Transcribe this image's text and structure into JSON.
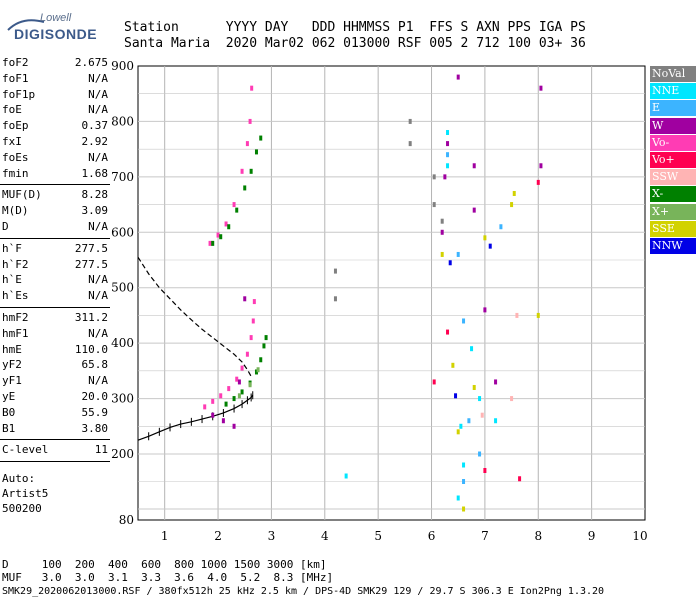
{
  "logo": {
    "top": "Lowell",
    "main": "DIGISONDE"
  },
  "header": {
    "line1": "Station      YYYY DAY   DDD HHMMSS P1  FFS S AXN PPS IGA PS",
    "line2": "Santa Maria  2020 Mar02 062 013000 RSF 005 2 712 100 03+ 36"
  },
  "params": {
    "group1": [
      {
        "name": "foF2",
        "value": "2.675"
      },
      {
        "name": "foF1",
        "value": "N/A"
      },
      {
        "name": "foF1p",
        "value": "N/A"
      },
      {
        "name": "foE",
        "value": "N/A"
      },
      {
        "name": "foEp",
        "value": "0.37"
      },
      {
        "name": "fxI",
        "value": "2.92"
      },
      {
        "name": "foEs",
        "value": "N/A"
      },
      {
        "name": "fmin",
        "value": "1.68"
      }
    ],
    "group2": [
      {
        "name": "MUF(D)",
        "value": "8.28"
      },
      {
        "name": "M(D)",
        "value": "3.09"
      },
      {
        "name": "D",
        "value": "N/A"
      }
    ],
    "group3": [
      {
        "name": "h`F",
        "value": "277.5"
      },
      {
        "name": "h`F2",
        "value": "277.5"
      },
      {
        "name": "h`E",
        "value": "N/A"
      },
      {
        "name": "h`Es",
        "value": "N/A"
      }
    ],
    "group4": [
      {
        "name": "hmF2",
        "value": "311.2"
      },
      {
        "name": "hmF1",
        "value": "N/A"
      },
      {
        "name": "hmE",
        "value": "110.0"
      },
      {
        "name": "yF2",
        "value": "65.8"
      },
      {
        "name": "yF1",
        "value": "N/A"
      },
      {
        "name": "yE",
        "value": "20.0"
      },
      {
        "name": "B0",
        "value": "55.9"
      },
      {
        "name": "B1",
        "value": "3.80"
      }
    ],
    "group5": [
      {
        "name": "C-level",
        "value": "11"
      }
    ],
    "auto": [
      "Auto:",
      "Artist5",
      "500200"
    ]
  },
  "legend": [
    {
      "label": "NoVal",
      "color": "#808080"
    },
    {
      "label": "NNE",
      "color": "#00e6ff"
    },
    {
      "label": "E",
      "color": "#3cb4ff"
    },
    {
      "label": "W",
      "color": "#a000a0"
    },
    {
      "label": "Vo-",
      "color": "#ff3cb4"
    },
    {
      "label": "Vo+",
      "color": "#ff0050"
    },
    {
      "label": "SSW",
      "color": "#ffb4b4"
    },
    {
      "label": "X-",
      "color": "#008000"
    },
    {
      "label": "X+",
      "color": "#78b45a"
    },
    {
      "label": "SSE",
      "color": "#d2d200"
    },
    {
      "label": "NNW",
      "color": "#0000e6"
    }
  ],
  "footer": {
    "line1": "D     100  200  400  600  800 1000 1500 3000 [km]",
    "line2": "MUF   3.0  3.0  3.1  3.3  3.6  4.0  5.2  8.3 [MHz]",
    "line3": "SMK29_2020062013000.RSF / 380fx512h 25 kHz 2.5 km / DPS-4D SMK29 129 / 29.7 S 306.3 E Ion2Png 1.3.20"
  },
  "chart_data": {
    "type": "scatter",
    "title": "",
    "xlabel": "",
    "ylabel": "",
    "xlim": [
      0.5,
      10
    ],
    "ylim": [
      80,
      900
    ],
    "x_ticks": [
      1,
      2,
      3,
      4,
      5,
      6,
      7,
      8,
      9,
      10
    ],
    "y_ticks": [
      80,
      200,
      300,
      400,
      500,
      600,
      700,
      800,
      900
    ],
    "grid": true,
    "series": [
      {
        "name": "Vo-",
        "color": "#ff3cb4",
        "points": [
          [
            1.75,
            285
          ],
          [
            1.9,
            295
          ],
          [
            2.05,
            305
          ],
          [
            2.2,
            318
          ],
          [
            2.35,
            335
          ],
          [
            2.45,
            355
          ],
          [
            2.55,
            380
          ],
          [
            2.62,
            410
          ],
          [
            2.66,
            440
          ],
          [
            2.68,
            475
          ],
          [
            1.85,
            580
          ],
          [
            2.0,
            595
          ],
          [
            2.15,
            615
          ],
          [
            2.3,
            650
          ],
          [
            2.45,
            710
          ],
          [
            2.55,
            760
          ],
          [
            2.6,
            800
          ],
          [
            2.63,
            860
          ]
        ]
      },
      {
        "name": "X-",
        "color": "#008000",
        "points": [
          [
            2.15,
            290
          ],
          [
            2.3,
            300
          ],
          [
            2.45,
            312
          ],
          [
            2.6,
            328
          ],
          [
            2.72,
            348
          ],
          [
            2.8,
            370
          ],
          [
            2.86,
            395
          ],
          [
            2.9,
            410
          ],
          [
            1.9,
            580
          ],
          [
            2.05,
            592
          ],
          [
            2.2,
            610
          ],
          [
            2.35,
            640
          ],
          [
            2.5,
            680
          ],
          [
            2.62,
            710
          ],
          [
            2.72,
            745
          ],
          [
            2.8,
            770
          ]
        ]
      },
      {
        "name": "X+",
        "color": "#78b45a",
        "points": [
          [
            2.4,
            305
          ],
          [
            2.6,
            325
          ],
          [
            2.75,
            352
          ]
        ]
      },
      {
        "name": "W",
        "color": "#a000a0",
        "points": [
          [
            1.9,
            270
          ],
          [
            2.1,
            260
          ],
          [
            2.3,
            250
          ],
          [
            2.5,
            480
          ],
          [
            2.4,
            330
          ],
          [
            6.2,
            600
          ],
          [
            6.25,
            700
          ],
          [
            6.3,
            760
          ],
          [
            6.5,
            880
          ],
          [
            6.8,
            720
          ],
          [
            6.8,
            640
          ],
          [
            7.0,
            460
          ],
          [
            7.2,
            330
          ],
          [
            8.05,
            720
          ],
          [
            8.05,
            860
          ]
        ]
      },
      {
        "name": "NoVal",
        "color": "#808080",
        "points": [
          [
            5.6,
            760
          ],
          [
            5.6,
            800
          ],
          [
            4.2,
            480
          ],
          [
            4.2,
            530
          ],
          [
            6.05,
            650
          ],
          [
            6.05,
            700
          ],
          [
            6.2,
            620
          ]
        ]
      },
      {
        "name": "NNE",
        "color": "#00e6ff",
        "points": [
          [
            6.3,
            780
          ],
          [
            6.3,
            720
          ],
          [
            6.55,
            250
          ],
          [
            6.6,
            180
          ],
          [
            6.5,
            120
          ],
          [
            6.75,
            390
          ],
          [
            6.9,
            300
          ],
          [
            7.2,
            260
          ],
          [
            4.4,
            160
          ]
        ]
      },
      {
        "name": "E",
        "color": "#3cb4ff",
        "points": [
          [
            6.3,
            740
          ],
          [
            6.5,
            560
          ],
          [
            6.6,
            440
          ],
          [
            6.7,
            260
          ],
          [
            6.9,
            200
          ],
          [
            7.3,
            610
          ],
          [
            6.6,
            150
          ]
        ]
      },
      {
        "name": "SSE",
        "color": "#d2d200",
        "points": [
          [
            6.2,
            560
          ],
          [
            6.4,
            360
          ],
          [
            6.5,
            240
          ],
          [
            6.6,
            100
          ],
          [
            7.5,
            650
          ],
          [
            7.55,
            670
          ],
          [
            8.0,
            450
          ],
          [
            6.8,
            320
          ],
          [
            7.0,
            590
          ]
        ]
      },
      {
        "name": "Vo+",
        "color": "#ff0050",
        "points": [
          [
            6.05,
            330
          ],
          [
            7.65,
            155
          ],
          [
            8.0,
            690
          ],
          [
            7.0,
            170
          ],
          [
            6.3,
            420
          ]
        ]
      },
      {
        "name": "SSW",
        "color": "#ffb4b4",
        "points": [
          [
            6.95,
            270
          ],
          [
            7.5,
            300
          ],
          [
            7.6,
            450
          ]
        ]
      },
      {
        "name": "NNW",
        "color": "#0000e6",
        "points": [
          [
            6.45,
            305
          ],
          [
            7.1,
            575
          ],
          [
            6.35,
            545
          ]
        ]
      }
    ],
    "profile_dashed": [
      [
        0.5,
        555
      ],
      [
        0.7,
        525
      ],
      [
        0.9,
        500
      ],
      [
        1.1,
        480
      ],
      [
        1.3,
        460
      ],
      [
        1.5,
        442
      ],
      [
        1.7,
        425
      ],
      [
        1.9,
        410
      ],
      [
        2.1,
        395
      ],
      [
        2.3,
        380
      ],
      [
        2.45,
        366
      ],
      [
        2.55,
        352
      ],
      [
        2.62,
        340
      ]
    ],
    "trace_black": [
      [
        0.5,
        225
      ],
      [
        0.7,
        232
      ],
      [
        0.9,
        240
      ],
      [
        1.1,
        248
      ],
      [
        1.3,
        254
      ],
      [
        1.5,
        258
      ],
      [
        1.7,
        263
      ],
      [
        1.9,
        268
      ],
      [
        2.1,
        274
      ],
      [
        2.3,
        282
      ],
      [
        2.45,
        290
      ],
      [
        2.55,
        297
      ],
      [
        2.62,
        302
      ],
      [
        2.65,
        306
      ]
    ]
  }
}
